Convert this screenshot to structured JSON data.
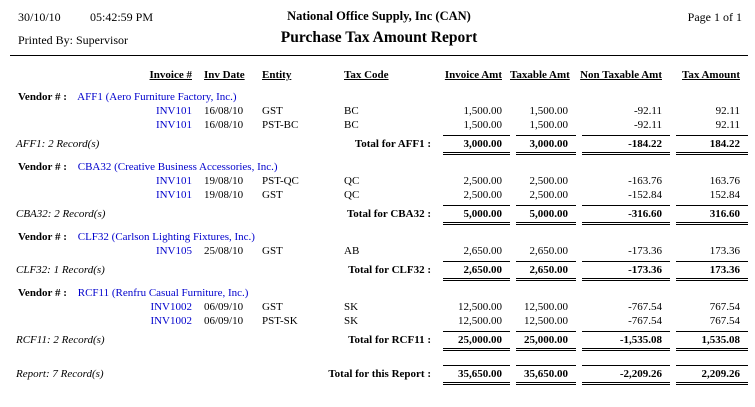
{
  "header": {
    "date": "30/10/10",
    "time": "05:42:59 PM",
    "company": "National Office Supply, Inc (CAN)",
    "page": "Page 1 of 1",
    "printed_by": "Printed By: Supervisor",
    "title": "Purchase Tax Amount Report"
  },
  "labels": {
    "vendor": "Vendor # :"
  },
  "columns": {
    "invoice": "Invoice #",
    "inv_date": "Inv Date",
    "entity": "Entity",
    "tax_code": "Tax Code",
    "invoice_amt": "Invoice Amt",
    "taxable_amt": "Taxable Amt",
    "non_taxable_amt": "Non Taxable Amt",
    "tax_amount": "Tax Amount"
  },
  "groups": [
    {
      "vendor": "AFF1 (Aero Furniture Factory, Inc.)",
      "rows": [
        {
          "invoice": "INV101",
          "date": "16/08/10",
          "entity": "GST",
          "tax_code": "BC",
          "invoice_amt": "1,500.00",
          "taxable_amt": "1,500.00",
          "non_taxable_amt": "-92.11",
          "tax_amount": "92.11"
        },
        {
          "invoice": "INV101",
          "date": "16/08/10",
          "entity": "PST-BC",
          "tax_code": "BC",
          "invoice_amt": "1,500.00",
          "taxable_amt": "1,500.00",
          "non_taxable_amt": "-92.11",
          "tax_amount": "92.11"
        }
      ],
      "summary": {
        "records": "AFF1: 2 Record(s)",
        "total_label": "Total for AFF1 :",
        "invoice_amt": "3,000.00",
        "taxable_amt": "3,000.00",
        "non_taxable_amt": "-184.22",
        "tax_amount": "184.22"
      }
    },
    {
      "vendor": "CBA32 (Creative Business Accessories, Inc.)",
      "rows": [
        {
          "invoice": "INV101",
          "date": "19/08/10",
          "entity": "PST-QC",
          "tax_code": "QC",
          "invoice_amt": "2,500.00",
          "taxable_amt": "2,500.00",
          "non_taxable_amt": "-163.76",
          "tax_amount": "163.76"
        },
        {
          "invoice": "INV101",
          "date": "19/08/10",
          "entity": "GST",
          "tax_code": "QC",
          "invoice_amt": "2,500.00",
          "taxable_amt": "2,500.00",
          "non_taxable_amt": "-152.84",
          "tax_amount": "152.84"
        }
      ],
      "summary": {
        "records": "CBA32: 2 Record(s)",
        "total_label": "Total for CBA32 :",
        "invoice_amt": "5,000.00",
        "taxable_amt": "5,000.00",
        "non_taxable_amt": "-316.60",
        "tax_amount": "316.60"
      }
    },
    {
      "vendor": "CLF32 (Carlson Lighting Fixtures, Inc.)",
      "rows": [
        {
          "invoice": "INV105",
          "date": "25/08/10",
          "entity": "GST",
          "tax_code": "AB",
          "invoice_amt": "2,650.00",
          "taxable_amt": "2,650.00",
          "non_taxable_amt": "-173.36",
          "tax_amount": "173.36"
        }
      ],
      "summary": {
        "records": "CLF32: 1 Record(s)",
        "total_label": "Total for CLF32 :",
        "invoice_amt": "2,650.00",
        "taxable_amt": "2,650.00",
        "non_taxable_amt": "-173.36",
        "tax_amount": "173.36"
      }
    },
    {
      "vendor": "RCF11 (Renfru Casual Furniture, Inc.)",
      "rows": [
        {
          "invoice": "INV1002",
          "date": "06/09/10",
          "entity": "GST",
          "tax_code": "SK",
          "invoice_amt": "12,500.00",
          "taxable_amt": "12,500.00",
          "non_taxable_amt": "-767.54",
          "tax_amount": "767.54"
        },
        {
          "invoice": "INV1002",
          "date": "06/09/10",
          "entity": "PST-SK",
          "tax_code": "SK",
          "invoice_amt": "12,500.00",
          "taxable_amt": "12,500.00",
          "non_taxable_amt": "-767.54",
          "tax_amount": "767.54"
        }
      ],
      "summary": {
        "records": "RCF11: 2 Record(s)",
        "total_label": "Total for RCF11 :",
        "invoice_amt": "25,000.00",
        "taxable_amt": "25,000.00",
        "non_taxable_amt": "-1,535.08",
        "tax_amount": "1,535.08"
      }
    }
  ],
  "report_total": {
    "records": "Report: 7 Record(s)",
    "total_label": "Total for this Report :",
    "invoice_amt": "35,650.00",
    "taxable_amt": "35,650.00",
    "non_taxable_amt": "-2,209.26",
    "tax_amount": "2,209.26"
  },
  "colors": {
    "link_blue": "#0000CC"
  }
}
